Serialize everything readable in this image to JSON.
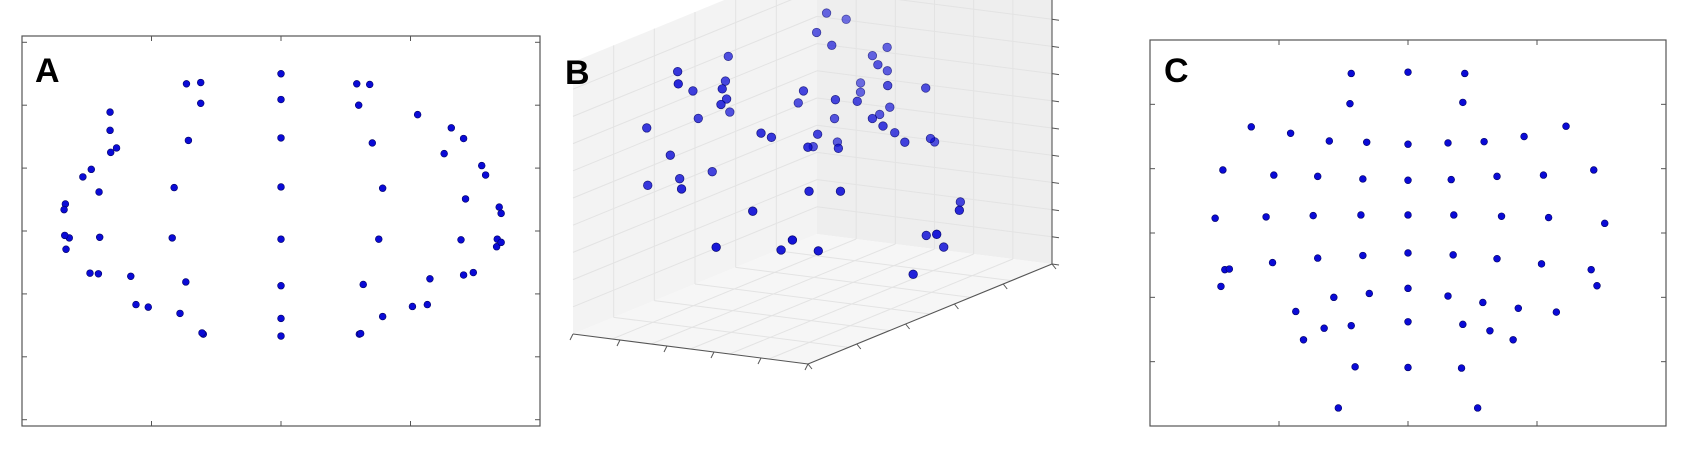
{
  "figure": {
    "panels": [
      {
        "id": "A",
        "label": "A"
      },
      {
        "id": "B",
        "label": "B"
      },
      {
        "id": "C",
        "label": "C"
      }
    ],
    "colors": {
      "point": "#0a0ad6",
      "point_edge": "#000066",
      "axes": "#555555",
      "pane": "#f2f2f2",
      "grid": "#e3e3e3"
    }
  },
  "chart_data": [
    {
      "panel": "A",
      "type": "scatter",
      "title": "",
      "xlabel": "",
      "ylabel": "",
      "xlim": [
        -4,
        4
      ],
      "ylim": [
        -3.1,
        3.1
      ],
      "grid": false,
      "tick_labels": false,
      "points": [
        [
          0,
          2.5
        ],
        [
          0,
          2.09
        ],
        [
          0,
          1.48
        ],
        [
          0,
          0.7
        ],
        [
          0,
          -0.13
        ],
        [
          0,
          -0.87
        ],
        [
          0,
          -1.39
        ],
        [
          0,
          -1.67
        ],
        [
          -1.46,
          2.34
        ],
        [
          -1.24,
          2.36
        ],
        [
          -1.24,
          2.03
        ],
        [
          -1.43,
          1.44
        ],
        [
          -1.65,
          0.69
        ],
        [
          -1.68,
          -0.11
        ],
        [
          -1.47,
          -0.81
        ],
        [
          -1.56,
          -1.31
        ],
        [
          -1.2,
          -1.64
        ],
        [
          -1.22,
          -1.62
        ],
        [
          1.17,
          2.34
        ],
        [
          1.37,
          2.33
        ],
        [
          1.2,
          2.0
        ],
        [
          1.41,
          1.4
        ],
        [
          1.57,
          0.68
        ],
        [
          1.51,
          -0.13
        ],
        [
          1.27,
          -0.85
        ],
        [
          1.57,
          -1.36
        ],
        [
          1.21,
          -1.64
        ],
        [
          1.23,
          -1.63
        ],
        [
          -2.64,
          1.89
        ],
        [
          -2.64,
          1.6
        ],
        [
          -2.54,
          1.32
        ],
        [
          -2.63,
          1.25
        ],
        [
          -2.93,
          0.98
        ],
        [
          -3.06,
          0.86
        ],
        [
          -2.81,
          0.62
        ],
        [
          -3.33,
          0.43
        ],
        [
          -3.35,
          0.34
        ],
        [
          -3.27,
          -0.11
        ],
        [
          -3.34,
          -0.07
        ],
        [
          -3.32,
          -0.29
        ],
        [
          -2.8,
          -0.1
        ],
        [
          -2.95,
          -0.67
        ],
        [
          -2.82,
          -0.68
        ],
        [
          -2.32,
          -0.72
        ],
        [
          -2.24,
          -1.17
        ],
        [
          -2.05,
          -1.21
        ],
        [
          2.11,
          1.85
        ],
        [
          2.63,
          1.64
        ],
        [
          2.82,
          1.47
        ],
        [
          2.52,
          1.23
        ],
        [
          3.1,
          1.04
        ],
        [
          3.16,
          0.89
        ],
        [
          2.85,
          0.51
        ],
        [
          3.37,
          0.38
        ],
        [
          3.4,
          0.28
        ],
        [
          2.78,
          -0.14
        ],
        [
          3.34,
          -0.13
        ],
        [
          3.33,
          -0.25
        ],
        [
          3.4,
          -0.18
        ],
        [
          2.82,
          -0.7
        ],
        [
          2.97,
          -0.66
        ],
        [
          2.3,
          -0.76
        ],
        [
          2.26,
          -1.17
        ],
        [
          2.03,
          -1.2
        ]
      ]
    },
    {
      "panel": "B",
      "type": "scatter",
      "title": "",
      "xlabel": "",
      "ylabel": "",
      "zlabel": "",
      "projection": "3d",
      "grid": true,
      "tick_labels": false,
      "points": [
        [
          -1.68,
          0.23,
          -1.05
        ],
        [
          -1.49,
          0.14,
          -1.47
        ],
        [
          -1.63,
          0.49,
          -0.91
        ],
        [
          -1.08,
          0.91,
          -1.07
        ],
        [
          -1.18,
          0.5,
          -1.24
        ],
        [
          -1.33,
          0.56,
          -1.38
        ],
        [
          -0.59,
          0.63,
          -0.23
        ],
        [
          -0.31,
          0.47,
          0.16
        ],
        [
          -0.66,
          0.97,
          -0.48
        ],
        [
          -0.73,
          0.41,
          -0.04
        ],
        [
          -0.79,
          0.58,
          -0.29
        ],
        [
          -0.78,
          0.84,
          -0.37
        ],
        [
          -0.65,
          0.89,
          0.15
        ],
        [
          -0.55,
          0.44,
          0.01
        ],
        [
          -0.45,
          0.18,
          -0.21
        ],
        [
          -0.43,
          0.68,
          0.25
        ],
        [
          -0.25,
          0.3,
          0.25
        ],
        [
          -0.13,
          0.9,
          0.28
        ],
        [
          -0.02,
          0.98,
          0.49
        ],
        [
          -0.22,
          0.74,
          0.43
        ],
        [
          -0.23,
          0.14,
          -0.06
        ],
        [
          0.12,
          0.54,
          0.7
        ],
        [
          0.08,
          0.91,
          0.42
        ],
        [
          0.32,
          0.54,
          0.82
        ],
        [
          0.48,
          0.95,
          0.76
        ],
        [
          -0.07,
          0.12,
          0.41
        ],
        [
          0.2,
          0.27,
          0.18
        ],
        [
          0.43,
          0.72,
          0.94
        ],
        [
          -0.88,
          -0.12,
          -0.5
        ],
        [
          -0.97,
          -0.66,
          -0.78
        ],
        [
          -0.72,
          -0.31,
          -0.43
        ],
        [
          -0.7,
          -0.57,
          -0.96
        ],
        [
          -0.42,
          -0.64,
          -0.53
        ],
        [
          -0.45,
          -0.12,
          -0.06
        ],
        [
          -0.1,
          -0.32,
          0.15
        ],
        [
          -0.38,
          -0.97,
          -0.78
        ],
        [
          -1.03,
          -0.45,
          -0.99
        ],
        [
          0.49,
          -0.68,
          -0.25
        ],
        [
          -0.13,
          -0.24,
          0.07
        ],
        [
          0.56,
          -0.72,
          0.02
        ],
        [
          0.13,
          -0.93,
          -0.21
        ],
        [
          0.67,
          -0.86,
          -0.26
        ],
        [
          0.58,
          -0.43,
          0.29
        ],
        [
          0.62,
          -0.09,
          0.2
        ],
        [
          0.49,
          -0.36,
          -0.32
        ],
        [
          0.71,
          -0.84,
          0.36
        ],
        [
          0.16,
          -0.52,
          0.53
        ],
        [
          0.49,
          -0.23,
          0.62
        ],
        [
          0.6,
          -0.12,
          0.83
        ],
        [
          0.16,
          -0.94,
          0.95
        ],
        [
          0.53,
          -0.52,
          0.64
        ],
        [
          0.49,
          -0.7,
          0.94
        ],
        [
          0.13,
          -0.53,
          0.71
        ],
        [
          0.26,
          -0.39,
          0.52
        ],
        [
          0.33,
          0.98,
          0.06
        ],
        [
          -0.19,
          0.78,
          -0.14
        ],
        [
          0.18,
          0.64,
          -0.42
        ],
        [
          0.17,
          0.86,
          0.03
        ],
        [
          0.03,
          0.5,
          -0.08
        ],
        [
          -0.27,
          0.82,
          -0.07
        ],
        [
          0.11,
          0.35,
          -0.33
        ]
      ]
    },
    {
      "panel": "C",
      "type": "scatter",
      "title": "",
      "xlabel": "",
      "ylabel": "",
      "xlim": [
        -4,
        4
      ],
      "ylim": [
        -3.0,
        3.0
      ],
      "grid": false,
      "tick_labels": false,
      "points": [
        [
          -0.88,
          2.48
        ],
        [
          0,
          2.5
        ],
        [
          0.88,
          2.48
        ],
        [
          -0.9,
          2.01
        ],
        [
          0.85,
          2.03
        ],
        [
          -2.43,
          1.65
        ],
        [
          -1.82,
          1.55
        ],
        [
          -1.22,
          1.43
        ],
        [
          -0.64,
          1.41
        ],
        [
          0,
          1.38
        ],
        [
          0.62,
          1.4
        ],
        [
          1.18,
          1.42
        ],
        [
          1.8,
          1.5
        ],
        [
          2.45,
          1.66
        ],
        [
          -2.87,
          0.98
        ],
        [
          -2.08,
          0.9
        ],
        [
          -1.4,
          0.88
        ],
        [
          -0.7,
          0.84
        ],
        [
          0,
          0.82
        ],
        [
          0.67,
          0.83
        ],
        [
          1.38,
          0.88
        ],
        [
          2.1,
          0.9
        ],
        [
          2.88,
          0.98
        ],
        [
          -2.99,
          0.23
        ],
        [
          -2.2,
          0.25
        ],
        [
          -1.47,
          0.27
        ],
        [
          -0.73,
          0.28
        ],
        [
          0,
          0.28
        ],
        [
          0.71,
          0.28
        ],
        [
          1.45,
          0.26
        ],
        [
          2.18,
          0.24
        ],
        [
          3.05,
          0.15
        ],
        [
          -2.84,
          -0.57
        ],
        [
          -2.1,
          -0.46
        ],
        [
          -1.4,
          -0.39
        ],
        [
          -0.7,
          -0.35
        ],
        [
          0,
          -0.31
        ],
        [
          0.7,
          -0.34
        ],
        [
          1.38,
          -0.4
        ],
        [
          2.07,
          -0.48
        ],
        [
          2.84,
          -0.57
        ],
        [
          -2.9,
          -0.83
        ],
        [
          -2.77,
          -0.56
        ],
        [
          -1.74,
          -1.22
        ],
        [
          -1.15,
          -1.0
        ],
        [
          -0.6,
          -0.94
        ],
        [
          0,
          -0.86
        ],
        [
          0.62,
          -0.98
        ],
        [
          1.16,
          -1.08
        ],
        [
          1.71,
          -1.17
        ],
        [
          2.3,
          -1.23
        ],
        [
          2.93,
          -0.82
        ],
        [
          -1.62,
          -1.66
        ],
        [
          -1.3,
          -1.48
        ],
        [
          -0.88,
          -1.44
        ],
        [
          0,
          -1.38
        ],
        [
          0.85,
          -1.42
        ],
        [
          1.27,
          -1.52
        ],
        [
          1.63,
          -1.66
        ],
        [
          -0.82,
          -2.08
        ],
        [
          0,
          -2.09
        ],
        [
          0.83,
          -2.1
        ],
        [
          -1.08,
          -2.72
        ],
        [
          1.08,
          -2.72
        ]
      ]
    }
  ]
}
